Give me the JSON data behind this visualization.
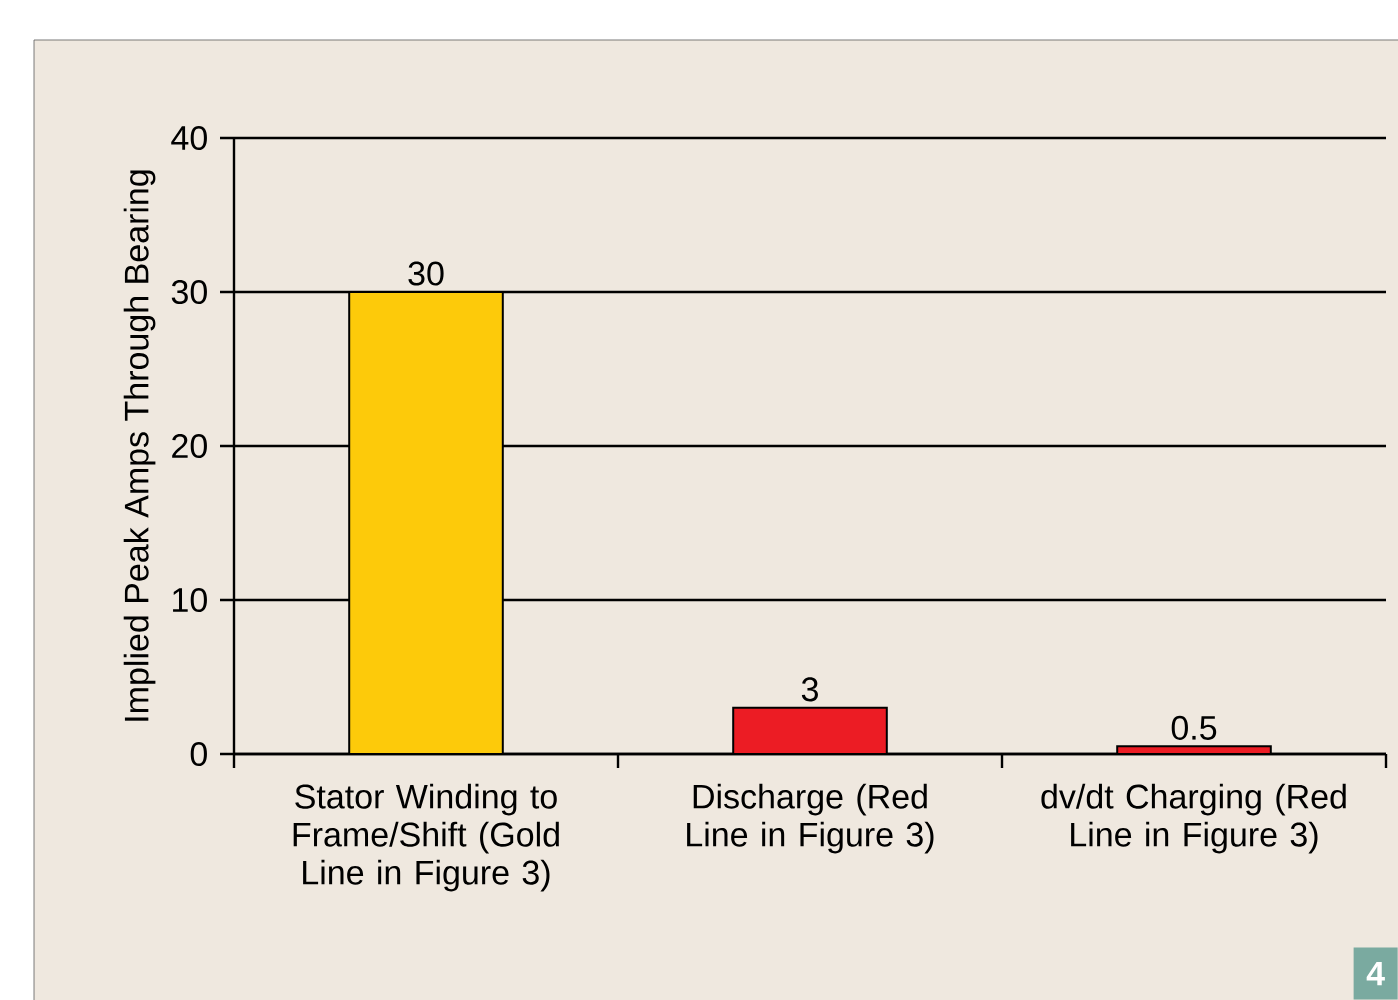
{
  "chart_data": {
    "type": "bar",
    "ylabel": "Implied Peak Amps Through Bearing",
    "categories": [
      "Stator Winding to Frame/Shift (Gold Line in Figure 3)",
      "Discharge (Red Line in Figure 3)",
      "dv/dt Charging (Red Line in Figure 3)"
    ],
    "values": [
      30,
      3,
      0.5
    ],
    "colors": [
      "#fdca0a",
      "#ec1c24",
      "#ec1c24"
    ],
    "value_labels": [
      "30",
      "3",
      "0.5"
    ],
    "ylim": [
      0,
      40
    ],
    "yticks": [
      0,
      10,
      20,
      30,
      40
    ],
    "grid": "y",
    "annotations": [
      "4"
    ]
  }
}
